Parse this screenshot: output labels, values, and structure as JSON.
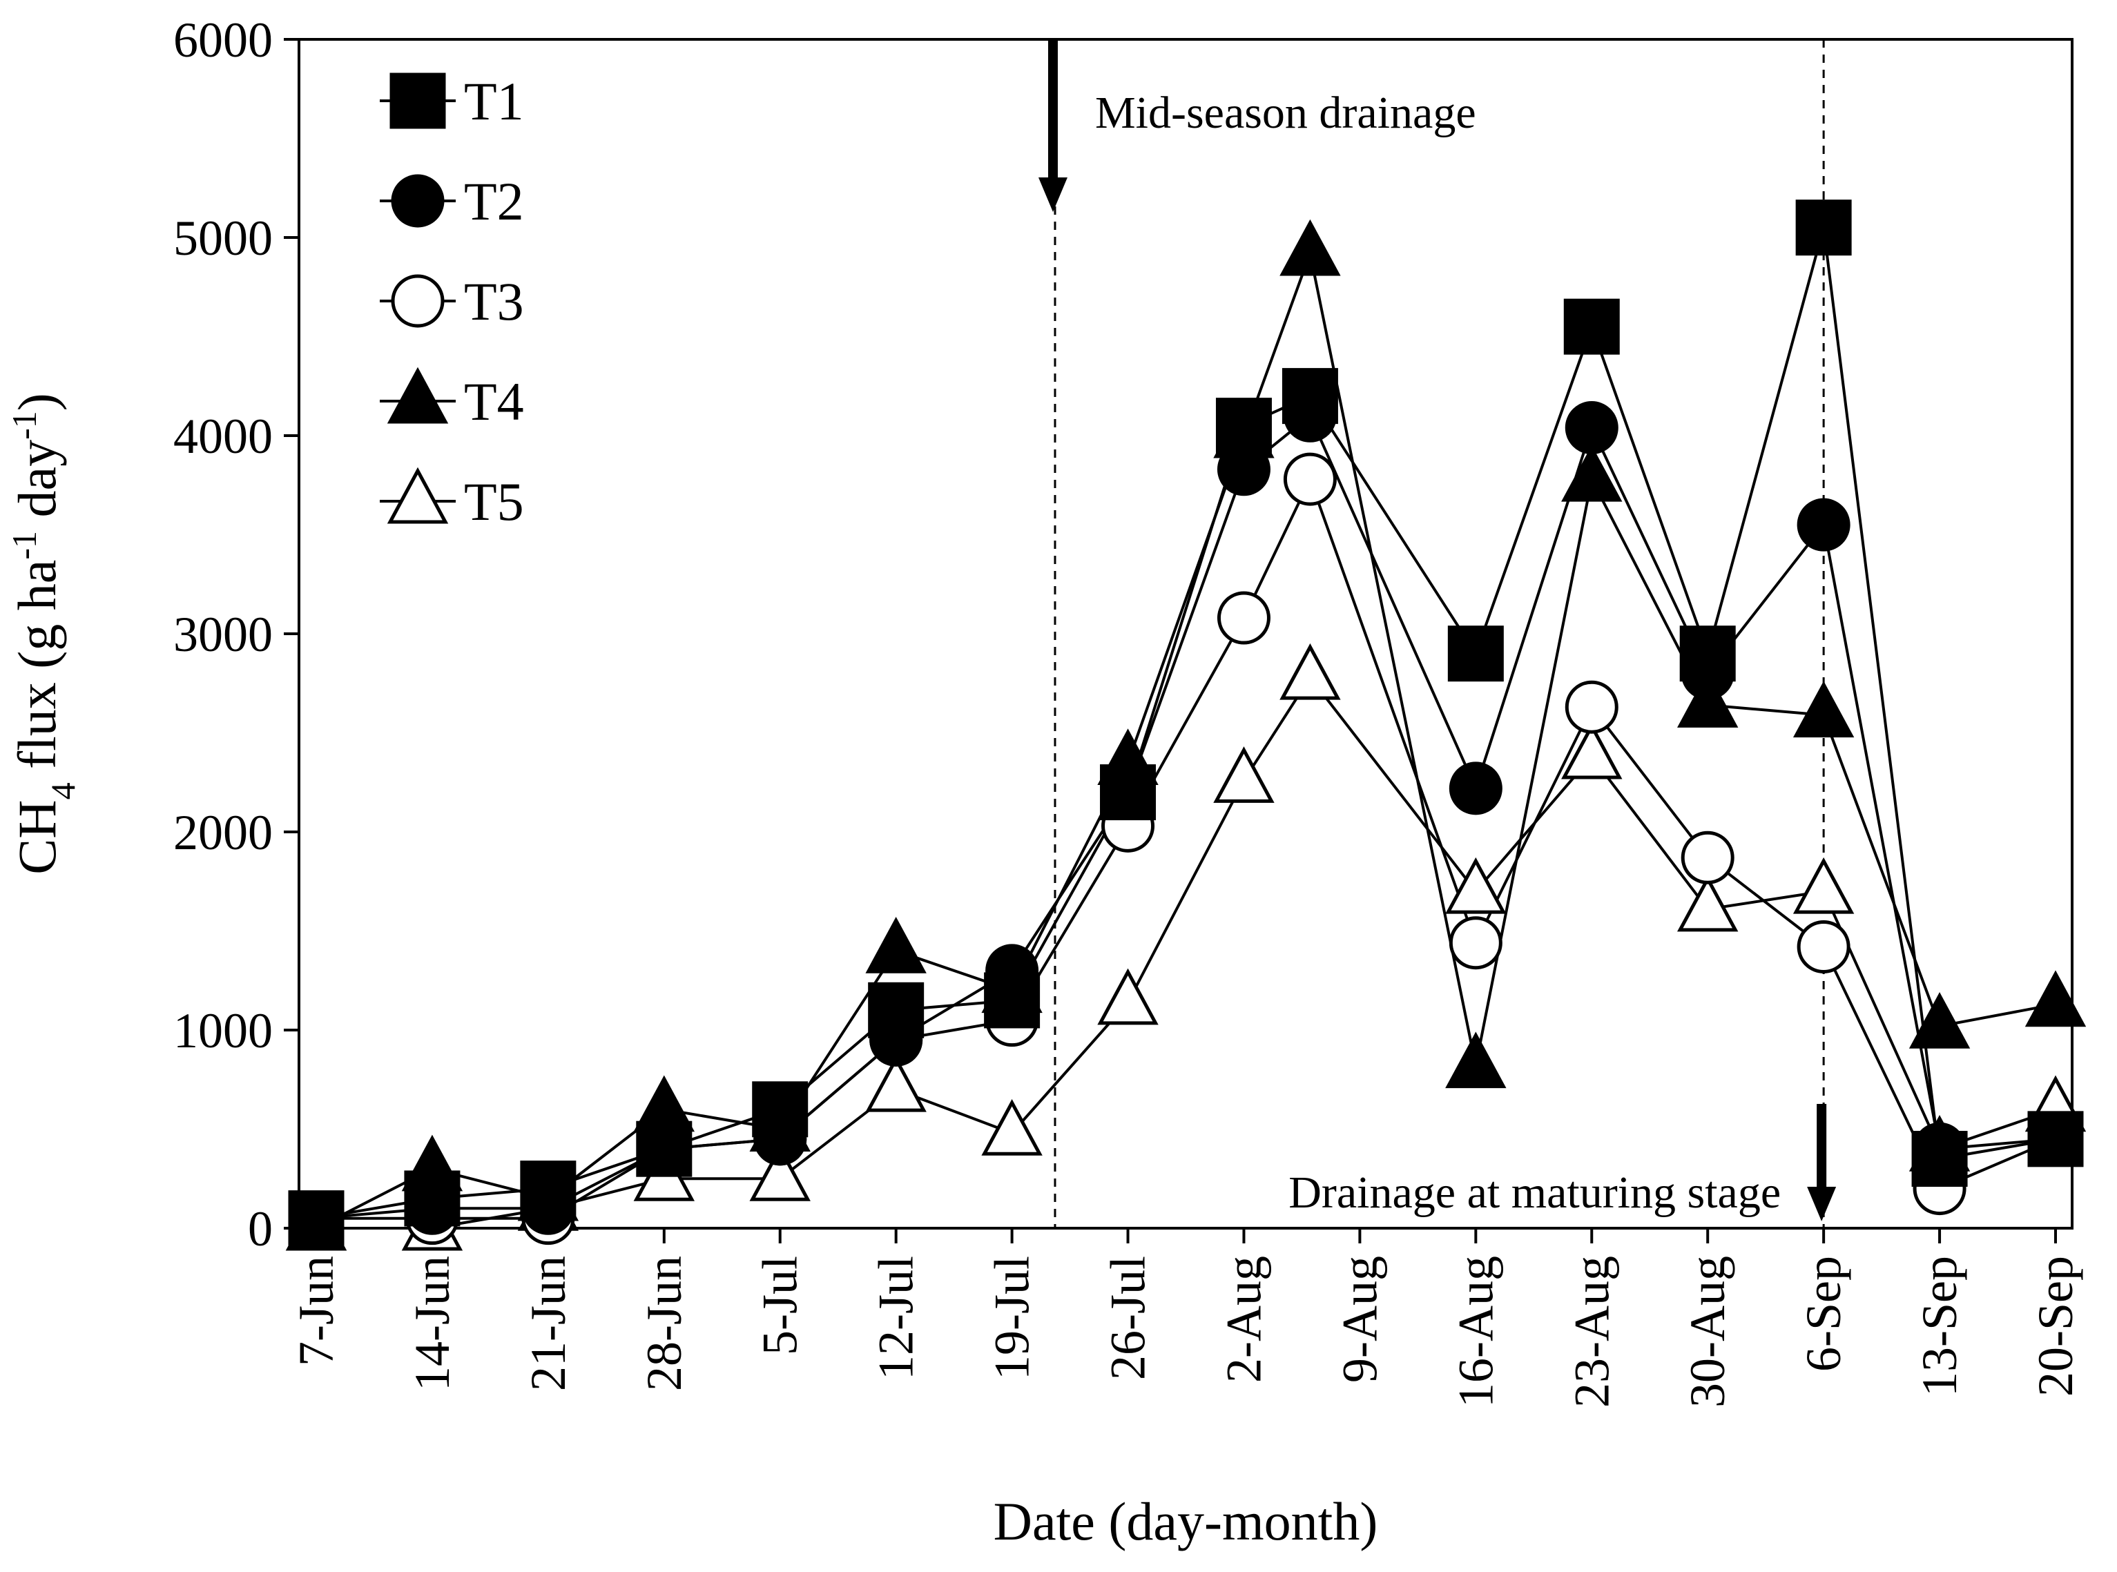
{
  "chart_data": {
    "type": "line",
    "title": "",
    "xlabel": "Date (day-month)",
    "ylabel_parts": [
      "CH",
      "4",
      " flux (g ha",
      "-1",
      " day",
      "-1",
      ")"
    ],
    "ylim": [
      0,
      6000
    ],
    "yticks": [
      0,
      1000,
      2000,
      3000,
      4000,
      5000,
      6000
    ],
    "categories": [
      "7-Jun",
      "14-Jun",
      "21-Jun",
      "28-Jun",
      "5-Jul",
      "12-Jul",
      "19-Jul",
      "26-Jul",
      "2-Aug",
      "9-Aug",
      "16-Aug",
      "23-Aug",
      "30-Aug",
      "6-Sep",
      "13-Sep",
      "20-Sep"
    ],
    "xlim_days": [
      0,
      105
    ],
    "legend_position": "top-left",
    "grid": false,
    "series": [
      {
        "name": "T1",
        "marker": "square",
        "filled": true,
        "x": [
          0,
          7,
          14,
          21,
          28,
          35,
          42,
          49,
          56,
          60,
          70,
          77,
          84,
          91,
          98,
          105
        ],
        "y": [
          50,
          150,
          200,
          400,
          600,
          1100,
          1150,
          2200,
          4050,
          4200,
          2900,
          4550,
          2900,
          5050,
          350,
          450
        ]
      },
      {
        "name": "T2",
        "marker": "circle",
        "filled": true,
        "x": [
          0,
          7,
          14,
          21,
          28,
          35,
          42,
          49,
          56,
          60,
          70,
          77,
          84,
          91,
          98,
          105
        ],
        "y": [
          50,
          100,
          100,
          400,
          450,
          950,
          1300,
          2200,
          3830,
          4100,
          2220,
          4040,
          2800,
          3550,
          400,
          450
        ]
      },
      {
        "name": "T3",
        "marker": "circle",
        "filled": false,
        "x": [
          0,
          7,
          14,
          21,
          28,
          35,
          42,
          49,
          56,
          60,
          70,
          77,
          84,
          91,
          98,
          105
        ],
        "y": [
          50,
          50,
          50,
          400,
          450,
          950,
          1050,
          2030,
          3080,
          3780,
          1440,
          2630,
          1870,
          1420,
          200,
          450
        ]
      },
      {
        "name": "T4",
        "marker": "triangle",
        "filled": true,
        "x": [
          0,
          7,
          14,
          21,
          28,
          35,
          42,
          49,
          56,
          60,
          70,
          77,
          84,
          91,
          98,
          105
        ],
        "y": [
          0,
          300,
          150,
          600,
          500,
          1400,
          1200,
          2350,
          4000,
          4920,
          820,
          3780,
          2640,
          2590,
          1020,
          1130
        ]
      },
      {
        "name": "T5",
        "marker": "triangle",
        "filled": false,
        "x": [
          0,
          7,
          14,
          21,
          28,
          35,
          42,
          49,
          56,
          60,
          70,
          77,
          84,
          91,
          98,
          105
        ],
        "y": [
          0,
          0,
          100,
          250,
          250,
          700,
          480,
          1140,
          2260,
          2780,
          1700,
          2380,
          1610,
          1700,
          400,
          600
        ]
      }
    ],
    "annotations": [
      {
        "text": "Mid-season drainage",
        "x_day": 44.6,
        "arrow": "down",
        "arrow_anchor": "top"
      },
      {
        "text": "Drainage at maturing stage",
        "x_day": 91,
        "arrow": "down",
        "arrow_anchor": "bottom"
      }
    ]
  }
}
